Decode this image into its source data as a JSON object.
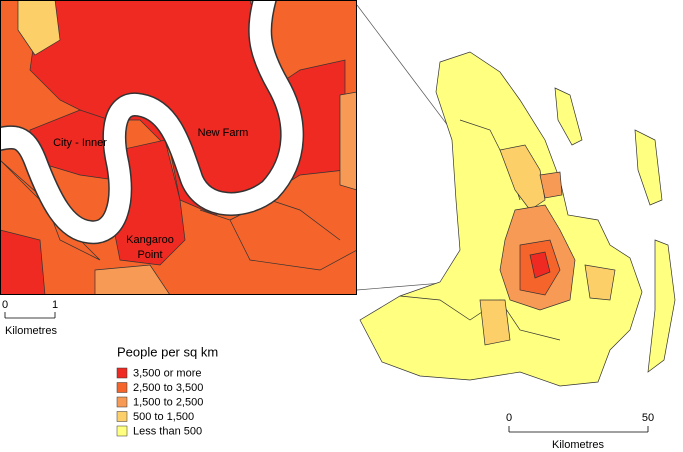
{
  "inset_map": {
    "labels": [
      "City - Inner",
      "New Farm",
      "Kangaroo Point"
    ],
    "scale": {
      "ticks": [
        0,
        1
      ],
      "unit": "Kilometres"
    }
  },
  "legend": {
    "title": "People per sq km",
    "items": [
      {
        "name": "3,500 or more",
        "color": "#ee2a22"
      },
      {
        "name": "2,500 to 3,500",
        "color": "#f4642b"
      },
      {
        "name": "1,500 to 2,500",
        "color": "#f79a55"
      },
      {
        "name": "500 to 1,500",
        "color": "#fdcf68"
      },
      {
        "name": "Less than 500",
        "color": "#ffff80"
      }
    ]
  },
  "main_map": {
    "scale": {
      "ticks": [
        0,
        50
      ],
      "unit": "Kilometres"
    }
  }
}
